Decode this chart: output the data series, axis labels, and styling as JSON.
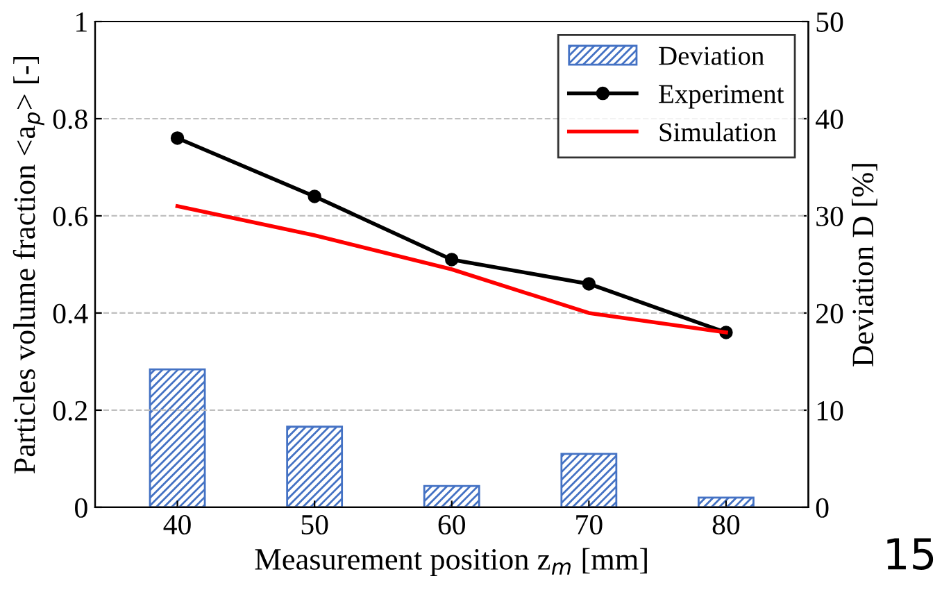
{
  "chart_data": {
    "type": "line",
    "xlabel": "Measurement position z$_{m}$ [mm]",
    "ylabel": "Particles volume fraction <a$_{p}$> [-]",
    "y2label": "Deviation D [%]",
    "categories": [
      "40",
      "50",
      "60",
      "70",
      "80"
    ],
    "series": [
      {
        "name": "Deviation",
        "type": "bar",
        "axis": "y2",
        "color": "#4472c4",
        "values": [
          14.2,
          8.3,
          2.2,
          5.5,
          1.0
        ]
      },
      {
        "name": "Experiment",
        "color": "#000000",
        "marker": "circle",
        "values": [
          0.76,
          0.64,
          0.51,
          0.46,
          0.36
        ]
      },
      {
        "name": "Simulation",
        "color": "#ff0000",
        "marker": "none",
        "values": [
          0.62,
          0.56,
          0.49,
          0.4,
          0.36
        ]
      }
    ],
    "ylim": [
      0,
      1
    ],
    "yticks": [
      0,
      0.2,
      0.4,
      0.6,
      0.8,
      1
    ],
    "y2lim": [
      0,
      50
    ],
    "y2ticks": [
      0,
      10,
      20,
      30,
      40,
      50
    ],
    "grid": "y",
    "legend": "top right",
    "annotations": [
      "15"
    ]
  }
}
